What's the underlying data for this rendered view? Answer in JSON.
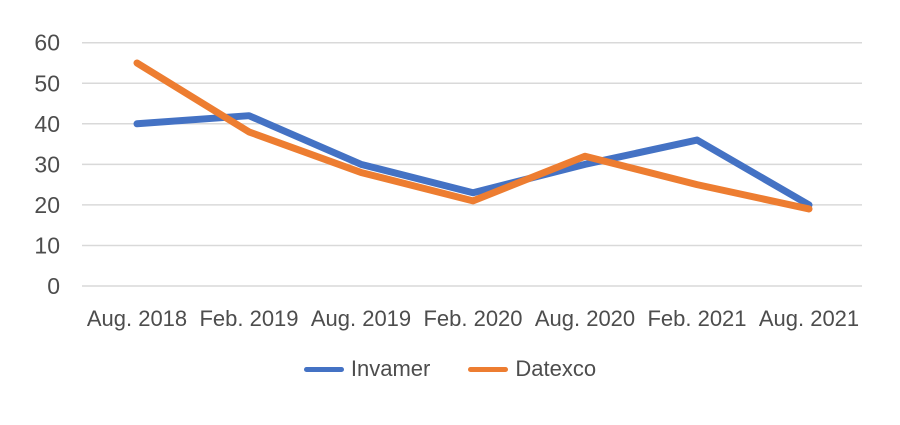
{
  "chart_data": {
    "type": "line",
    "title": "",
    "xlabel": "",
    "ylabel": "",
    "categories": [
      "Aug. 2018",
      "Feb. 2019",
      "Aug. 2019",
      "Feb. 2020",
      "Aug. 2020",
      "Feb. 2021",
      "Aug. 2021"
    ],
    "series": [
      {
        "name": "Invamer",
        "color": "#4472C4",
        "values": [
          40,
          42,
          30,
          23,
          30,
          36,
          20
        ]
      },
      {
        "name": "Datexco",
        "color": "#ED7D31",
        "values": [
          55,
          38,
          28,
          21,
          32,
          25,
          19
        ]
      }
    ],
    "ylim": [
      0,
      60
    ],
    "yticks": [
      0,
      10,
      20,
      30,
      40,
      50,
      60
    ],
    "grid": "horizontal-only",
    "legend_position": "bottom"
  },
  "styles": {
    "grid_color": "#D9D9D9",
    "label_color": "#4D4D4D",
    "background": "#FFFFFF",
    "line_width": 7
  }
}
